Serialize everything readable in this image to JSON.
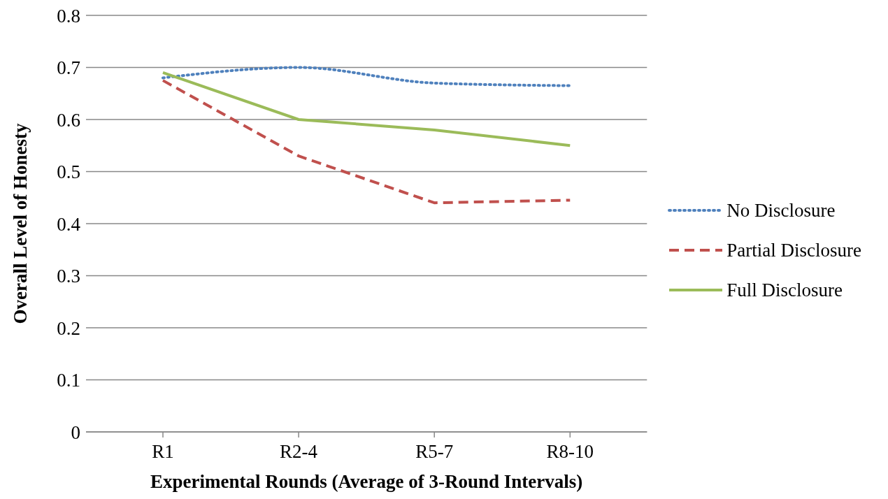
{
  "chart_data": {
    "type": "line",
    "xlabel": "Experimental Rounds (Average of 3-Round Intervals)",
    "ylabel": "Overall Level of Honesty",
    "categories": [
      "R1",
      "R2-4",
      "R5-7",
      "R8-10"
    ],
    "series": [
      {
        "name": "No Disclosure",
        "color": "#4f81bd",
        "line_style": "dotted",
        "values": [
          0.68,
          0.7,
          0.67,
          0.665
        ]
      },
      {
        "name": "Partial Disclosure",
        "color": "#c0504d",
        "line_style": "dashed",
        "values": [
          0.675,
          0.53,
          0.44,
          0.445
        ]
      },
      {
        "name": "Full Disclosure",
        "color": "#9bbb59",
        "line_style": "solid",
        "values": [
          0.69,
          0.6,
          0.58,
          0.55
        ]
      }
    ],
    "ylim": [
      0,
      0.8
    ],
    "yticks": [
      0,
      0.1,
      0.2,
      0.3,
      0.4,
      0.5,
      0.6,
      0.7,
      0.8
    ],
    "grid": "y",
    "legend": "right",
    "marker": "none"
  }
}
